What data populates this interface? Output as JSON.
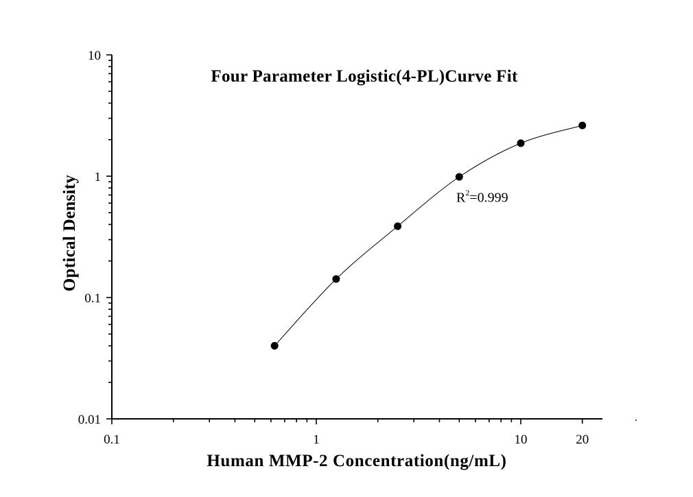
{
  "chart_data": {
    "type": "scatter",
    "title": "Four Parameter Logistic(4-PL)Curve Fit",
    "xlabel": "Human MMP-2 Concentration(ng/mL)",
    "ylabel": "Optical Density",
    "x_scale": "log",
    "y_scale": "log",
    "xlim": [
      0.1,
      25
    ],
    "ylim": [
      0.01,
      10
    ],
    "x_ticks": [
      "0.1",
      "1",
      "10",
      "20"
    ],
    "x_tick_values": [
      0.1,
      1,
      10,
      20
    ],
    "y_ticks": [
      "0.01",
      "0.1",
      "1",
      "10"
    ],
    "y_tick_values": [
      0.01,
      0.1,
      1,
      10
    ],
    "grid": false,
    "legend": null,
    "series": [
      {
        "name": "Standard points",
        "x": [
          0.625,
          1.25,
          2.5,
          5,
          10,
          20
        ],
        "y": [
          0.04,
          0.142,
          0.387,
          0.987,
          1.87,
          2.62
        ],
        "marker": "filled-circle",
        "color": "#000000"
      },
      {
        "name": "4-PL fit curve",
        "type": "line",
        "color": "#000000"
      }
    ],
    "annotations": [
      {
        "text": "R²=0.999",
        "label": "R",
        "sup": "2",
        "value": "=0.999",
        "x": 5.2,
        "y": 0.74
      }
    ]
  }
}
